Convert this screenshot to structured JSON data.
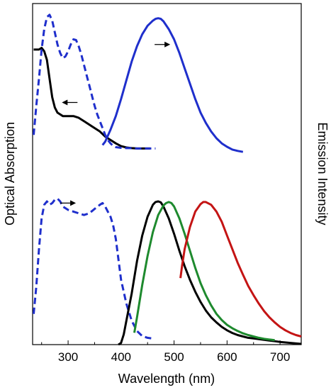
{
  "chart_data": {
    "type": "line",
    "xlabel": "Wavelength (nm)",
    "ylabel_left": "Optical Absorption",
    "ylabel_right": "Emission Intensity",
    "xlim": [
      233,
      740
    ],
    "ylim": [
      0,
      1
    ],
    "x_ticks": [
      300,
      400,
      500,
      600,
      700
    ],
    "y_tick_labels": false,
    "grid": false,
    "series": [
      {
        "panel": "top",
        "kind": "absorption",
        "color": "#000000",
        "style": "solid",
        "points": [
          [
            235,
            0.865
          ],
          [
            240,
            0.865
          ],
          [
            245,
            0.865
          ],
          [
            250,
            0.87
          ],
          [
            255,
            0.86
          ],
          [
            260,
            0.835
          ],
          [
            265,
            0.78
          ],
          [
            270,
            0.725
          ],
          [
            275,
            0.695
          ],
          [
            280,
            0.68
          ],
          [
            290,
            0.67
          ],
          [
            300,
            0.67
          ],
          [
            310,
            0.67
          ],
          [
            320,
            0.665
          ],
          [
            330,
            0.655
          ],
          [
            340,
            0.645
          ],
          [
            350,
            0.635
          ],
          [
            360,
            0.625
          ],
          [
            370,
            0.61
          ],
          [
            380,
            0.6
          ],
          [
            390,
            0.59
          ],
          [
            400,
            0.582
          ],
          [
            410,
            0.578
          ],
          [
            420,
            0.576
          ],
          [
            430,
            0.575
          ],
          [
            440,
            0.575
          ],
          [
            450,
            0.575
          ],
          [
            455,
            0.575
          ]
        ]
      },
      {
        "panel": "top",
        "kind": "excitation",
        "color": "#1f2fcc",
        "style": "dashed",
        "points": [
          [
            235,
            0.615
          ],
          [
            240,
            0.7
          ],
          [
            245,
            0.78
          ],
          [
            250,
            0.865
          ],
          [
            255,
            0.925
          ],
          [
            260,
            0.96
          ],
          [
            265,
            0.967
          ],
          [
            270,
            0.95
          ],
          [
            275,
            0.915
          ],
          [
            280,
            0.88
          ],
          [
            285,
            0.855
          ],
          [
            290,
            0.84
          ],
          [
            295,
            0.845
          ],
          [
            300,
            0.86
          ],
          [
            305,
            0.88
          ],
          [
            310,
            0.895
          ],
          [
            315,
            0.893
          ],
          [
            320,
            0.875
          ],
          [
            325,
            0.85
          ],
          [
            330,
            0.82
          ],
          [
            335,
            0.79
          ],
          [
            340,
            0.76
          ],
          [
            345,
            0.73
          ],
          [
            350,
            0.7
          ],
          [
            355,
            0.675
          ],
          [
            360,
            0.655
          ],
          [
            365,
            0.635
          ],
          [
            370,
            0.615
          ],
          [
            375,
            0.6
          ],
          [
            380,
            0.59
          ],
          [
            385,
            0.583
          ],
          [
            390,
            0.579
          ],
          [
            400,
            0.577
          ],
          [
            410,
            0.576
          ],
          [
            420,
            0.576
          ],
          [
            430,
            0.575
          ],
          [
            440,
            0.575
          ],
          [
            450,
            0.575
          ],
          [
            460,
            0.575
          ],
          [
            465,
            0.575
          ]
        ]
      },
      {
        "panel": "top",
        "kind": "emission",
        "color": "#1f2fcc",
        "style": "solid",
        "points": [
          [
            365,
            0.585
          ],
          [
            370,
            0.595
          ],
          [
            380,
            0.63
          ],
          [
            390,
            0.67
          ],
          [
            400,
            0.72
          ],
          [
            410,
            0.775
          ],
          [
            420,
            0.83
          ],
          [
            430,
            0.875
          ],
          [
            440,
            0.91
          ],
          [
            450,
            0.935
          ],
          [
            460,
            0.95
          ],
          [
            465,
            0.955
          ],
          [
            470,
            0.957
          ],
          [
            475,
            0.955
          ],
          [
            480,
            0.948
          ],
          [
            490,
            0.925
          ],
          [
            500,
            0.895
          ],
          [
            510,
            0.855
          ],
          [
            520,
            0.81
          ],
          [
            530,
            0.765
          ],
          [
            540,
            0.72
          ],
          [
            550,
            0.68
          ],
          [
            560,
            0.65
          ],
          [
            570,
            0.625
          ],
          [
            580,
            0.605
          ],
          [
            590,
            0.59
          ],
          [
            600,
            0.58
          ],
          [
            610,
            0.572
          ],
          [
            620,
            0.568
          ],
          [
            630,
            0.565
          ]
        ]
      },
      {
        "panel": "bottom",
        "kind": "excitation",
        "color": "#1f2fcc",
        "style": "dashed",
        "points": [
          [
            235,
            0.09
          ],
          [
            240,
            0.17
          ],
          [
            245,
            0.28
          ],
          [
            250,
            0.37
          ],
          [
            255,
            0.41
          ],
          [
            260,
            0.42
          ],
          [
            265,
            0.41
          ],
          [
            270,
            0.415
          ],
          [
            275,
            0.425
          ],
          [
            280,
            0.428
          ],
          [
            285,
            0.42
          ],
          [
            290,
            0.405
          ],
          [
            300,
            0.395
          ],
          [
            310,
            0.39
          ],
          [
            320,
            0.385
          ],
          [
            330,
            0.38
          ],
          [
            340,
            0.385
          ],
          [
            350,
            0.398
          ],
          [
            360,
            0.41
          ],
          [
            365,
            0.415
          ],
          [
            370,
            0.405
          ],
          [
            375,
            0.39
          ],
          [
            380,
            0.375
          ],
          [
            385,
            0.35
          ],
          [
            390,
            0.31
          ],
          [
            395,
            0.25
          ],
          [
            400,
            0.19
          ],
          [
            410,
            0.12
          ],
          [
            420,
            0.07
          ],
          [
            430,
            0.04
          ],
          [
            440,
            0.025
          ],
          [
            450,
            0.02
          ],
          [
            458,
            0.018
          ]
        ]
      },
      {
        "panel": "bottom",
        "kind": "emission",
        "color": "#000000",
        "style": "solid",
        "points": [
          [
            395,
            0.0
          ],
          [
            400,
            0.005
          ],
          [
            405,
            0.03
          ],
          [
            410,
            0.07
          ],
          [
            420,
            0.15
          ],
          [
            430,
            0.245
          ],
          [
            440,
            0.32
          ],
          [
            450,
            0.375
          ],
          [
            460,
            0.41
          ],
          [
            465,
            0.418
          ],
          [
            470,
            0.42
          ],
          [
            475,
            0.417
          ],
          [
            480,
            0.405
          ],
          [
            490,
            0.37
          ],
          [
            500,
            0.325
          ],
          [
            510,
            0.275
          ],
          [
            520,
            0.23
          ],
          [
            530,
            0.19
          ],
          [
            540,
            0.155
          ],
          [
            550,
            0.125
          ],
          [
            560,
            0.1
          ],
          [
            570,
            0.08
          ],
          [
            580,
            0.065
          ],
          [
            590,
            0.052
          ],
          [
            600,
            0.042
          ],
          [
            610,
            0.034
          ],
          [
            620,
            0.028
          ],
          [
            630,
            0.024
          ],
          [
            640,
            0.02
          ],
          [
            650,
            0.018
          ],
          [
            660,
            0.016
          ],
          [
            670,
            0.014
          ],
          [
            680,
            0.012
          ],
          [
            690,
            0.01
          ],
          [
            700,
            0.008
          ],
          [
            720,
            0.005
          ],
          [
            740,
            0.002
          ]
        ]
      },
      {
        "panel": "bottom",
        "kind": "emission",
        "color": "#1e8a2e",
        "style": "solid",
        "points": [
          [
            425,
            0.035
          ],
          [
            430,
            0.08
          ],
          [
            440,
            0.175
          ],
          [
            450,
            0.26
          ],
          [
            460,
            0.33
          ],
          [
            470,
            0.38
          ],
          [
            480,
            0.408
          ],
          [
            485,
            0.415
          ],
          [
            490,
            0.418
          ],
          [
            495,
            0.415
          ],
          [
            500,
            0.405
          ],
          [
            510,
            0.37
          ],
          [
            520,
            0.325
          ],
          [
            530,
            0.275
          ],
          [
            540,
            0.225
          ],
          [
            550,
            0.18
          ],
          [
            560,
            0.145
          ],
          [
            570,
            0.115
          ],
          [
            580,
            0.09
          ],
          [
            590,
            0.072
          ],
          [
            600,
            0.058
          ],
          [
            610,
            0.048
          ],
          [
            620,
            0.04
          ],
          [
            630,
            0.033
          ],
          [
            640,
            0.028
          ],
          [
            650,
            0.024
          ],
          [
            660,
            0.02
          ],
          [
            670,
            0.017
          ],
          [
            680,
            0.015
          ],
          [
            690,
            0.013
          ]
        ]
      },
      {
        "panel": "bottom",
        "kind": "emission",
        "color": "#c41414",
        "style": "solid",
        "points": [
          [
            512,
            0.195
          ],
          [
            515,
            0.23
          ],
          [
            520,
            0.28
          ],
          [
            530,
            0.345
          ],
          [
            540,
            0.39
          ],
          [
            550,
            0.412
          ],
          [
            555,
            0.418
          ],
          [
            560,
            0.418
          ],
          [
            570,
            0.41
          ],
          [
            580,
            0.39
          ],
          [
            590,
            0.36
          ],
          [
            600,
            0.32
          ],
          [
            610,
            0.28
          ],
          [
            620,
            0.24
          ],
          [
            630,
            0.205
          ],
          [
            640,
            0.172
          ],
          [
            650,
            0.145
          ],
          [
            660,
            0.12
          ],
          [
            670,
            0.098
          ],
          [
            680,
            0.08
          ],
          [
            690,
            0.065
          ],
          [
            700,
            0.052
          ],
          [
            710,
            0.042
          ],
          [
            720,
            0.034
          ],
          [
            730,
            0.028
          ],
          [
            740,
            0.024
          ]
        ]
      }
    ],
    "annotations": [
      {
        "type": "arrow",
        "direction": "right",
        "x": 478,
        "y": 0.88,
        "meaning": "right axis"
      },
      {
        "type": "arrow",
        "direction": "left",
        "x": 303,
        "y": 0.71,
        "meaning": "left axis"
      },
      {
        "type": "arrow",
        "direction": "right",
        "x": 300,
        "y": 0.415,
        "meaning": "right axis"
      }
    ]
  }
}
